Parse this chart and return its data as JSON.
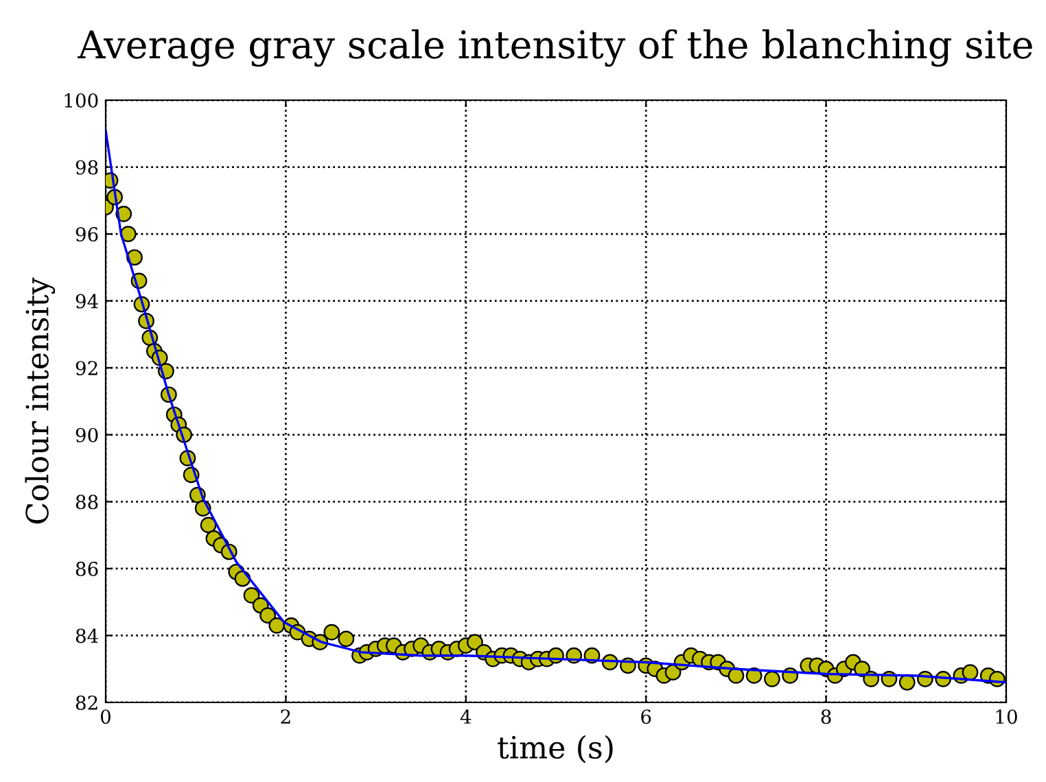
{
  "chart_data": {
    "type": "scatter",
    "title": "Average gray scale intensity of the blanching site",
    "xlabel": "time (s)",
    "ylabel": "Colour intensity",
    "xlim": [
      0,
      10
    ],
    "xticks": [
      0,
      2,
      4,
      6,
      8,
      10
    ],
    "ylim": [
      82,
      100
    ],
    "yticks": [
      82,
      84,
      86,
      88,
      90,
      92,
      94,
      96,
      98,
      100
    ],
    "grid": true,
    "legend": false,
    "series": [
      {
        "color": "#bfbf00",
        "marker": "circle",
        "x": [
          0,
          0.05,
          0.1,
          0.2,
          0.25,
          0.32,
          0.37,
          0.4,
          0.45,
          0.49,
          0.54,
          0.6,
          0.67,
          0.7,
          0.76,
          0.81,
          0.87,
          0.91,
          0.95,
          1.02,
          1.08,
          1.14,
          1.2,
          1.28,
          1.37,
          1.45,
          1.52,
          1.62,
          1.72,
          1.8,
          1.9,
          2.06,
          2.13,
          2.26,
          2.38,
          2.51,
          2.67,
          2.82,
          2.9,
          3.0,
          3.1,
          3.2,
          3.3,
          3.4,
          3.5,
          3.6,
          3.7,
          3.8,
          3.9,
          4.0,
          4.1,
          4.2,
          4.3,
          4.4,
          4.5,
          4.6,
          4.7,
          4.8,
          4.9,
          5.0,
          5.2,
          5.4,
          5.6,
          5.8,
          6.0,
          6.1,
          6.2,
          6.3,
          6.4,
          6.5,
          6.6,
          6.7,
          6.8,
          6.9,
          7.0,
          7.2,
          7.4,
          7.6,
          7.8,
          7.9,
          8.0,
          8.1,
          8.2,
          8.3,
          8.4,
          8.5,
          8.7,
          8.9,
          9.1,
          9.3,
          9.5,
          9.6,
          9.8,
          9.9
        ],
        "values": [
          96.8,
          97.6,
          97.1,
          96.6,
          96.0,
          95.3,
          94.6,
          93.9,
          93.4,
          92.9,
          92.5,
          92.3,
          91.9,
          91.2,
          90.6,
          90.3,
          90.0,
          89.3,
          88.8,
          88.2,
          87.8,
          87.3,
          86.9,
          86.7,
          86.5,
          85.9,
          85.7,
          85.2,
          84.9,
          84.6,
          84.3,
          84.3,
          84.1,
          83.9,
          83.8,
          84.1,
          83.9,
          83.4,
          83.5,
          83.6,
          83.7,
          83.7,
          83.5,
          83.6,
          83.7,
          83.5,
          83.6,
          83.5,
          83.6,
          83.7,
          83.8,
          83.5,
          83.3,
          83.4,
          83.4,
          83.3,
          83.2,
          83.3,
          83.3,
          83.4,
          83.4,
          83.4,
          83.2,
          83.1,
          83.1,
          83.0,
          82.8,
          82.9,
          83.2,
          83.4,
          83.3,
          83.2,
          83.2,
          83.0,
          82.8,
          82.8,
          82.7,
          82.8,
          83.1,
          83.1,
          83.0,
          82.8,
          83.0,
          83.2,
          83.0,
          82.7,
          82.7,
          82.6,
          82.7,
          82.7,
          82.8,
          82.9,
          82.8,
          82.7
        ]
      },
      {
        "type": "line",
        "color": "#0000ff",
        "marker": "none",
        "line_style": "solid",
        "x": [
          0,
          0.17,
          0.4,
          0.7,
          1.08,
          1.45,
          1.98,
          2.4,
          2.84,
          3.5,
          4,
          5,
          6,
          7,
          8,
          9,
          10
        ],
        "values": [
          99.1,
          96.0,
          94.0,
          91.2,
          88.1,
          86.2,
          84.4,
          83.8,
          83.5,
          83.4,
          83.4,
          83.3,
          83.2,
          83.0,
          82.85,
          82.8,
          82.6
        ]
      }
    ]
  }
}
